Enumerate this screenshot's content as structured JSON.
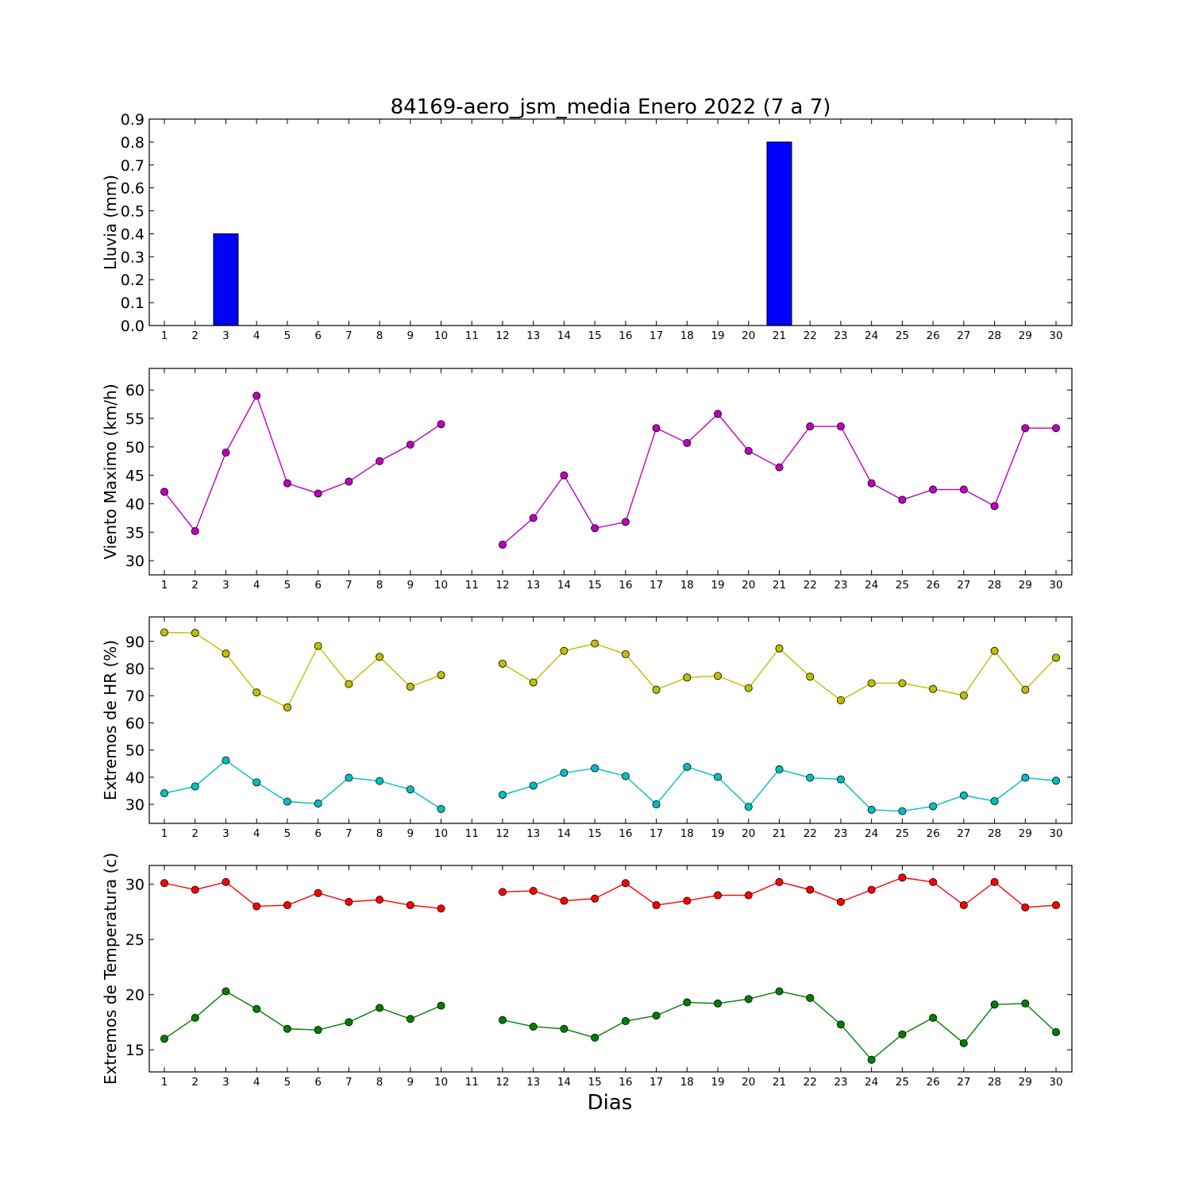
{
  "chart_data": [
    {
      "type": "bar",
      "title": "84169-aero_jsm_media Enero 2022  (7 a 7)",
      "ylabel": "Lluvia (mm)",
      "ylim": [
        0,
        0.9
      ],
      "yticks": [
        "0.0",
        "0.1",
        "0.2",
        "0.3",
        "0.4",
        "0.5",
        "0.6",
        "0.7",
        "0.8",
        "0.9"
      ],
      "xticks": [
        "1",
        "2",
        "3",
        "4",
        "5",
        "6",
        "7",
        "8",
        "9",
        "10",
        "11",
        "12",
        "13",
        "14",
        "15",
        "16",
        "17",
        "18",
        "19",
        "20",
        "21",
        "22",
        "23",
        "24",
        "25",
        "26",
        "27",
        "28",
        "29",
        "30"
      ],
      "series": [
        {
          "color": "#0000ff",
          "values": [
            0,
            0,
            0.4,
            0,
            0,
            0,
            0,
            0,
            0,
            0,
            0,
            0,
            0,
            0,
            0,
            0,
            0,
            0,
            0,
            0,
            0.8,
            0,
            0,
            0,
            0,
            0,
            0,
            0,
            0,
            0
          ]
        }
      ]
    },
    {
      "type": "line",
      "ylabel": "Viento Maximo (km/h)",
      "ylim": [
        27.5,
        63.8
      ],
      "yticks": [
        "30",
        "35",
        "40",
        "45",
        "50",
        "55",
        "60"
      ],
      "xticks": [
        "1",
        "2",
        "3",
        "4",
        "5",
        "6",
        "7",
        "8",
        "9",
        "10",
        "11",
        "12",
        "13",
        "14",
        "15",
        "16",
        "17",
        "18",
        "19",
        "20",
        "21",
        "22",
        "23",
        "24",
        "25",
        "26",
        "27",
        "28",
        "29",
        "30"
      ],
      "series": [
        {
          "color": "#bf00bf",
          "values": [
            42.1,
            35.2,
            49.0,
            59.0,
            43.6,
            41.8,
            43.9,
            47.5,
            50.4,
            54.0,
            null,
            32.8,
            37.5,
            45.0,
            35.7,
            36.8,
            53.3,
            50.7,
            55.8,
            49.3,
            46.4,
            53.6,
            53.6,
            43.6,
            40.7,
            42.5,
            42.5,
            39.6,
            53.3,
            53.3
          ]
        }
      ]
    },
    {
      "type": "line",
      "ylabel": "Extremos de HR (%)",
      "ylim": [
        23,
        99
      ],
      "yticks": [
        "30",
        "40",
        "50",
        "60",
        "70",
        "80",
        "90"
      ],
      "xticks": [
        "1",
        "2",
        "3",
        "4",
        "5",
        "6",
        "7",
        "8",
        "9",
        "10",
        "11",
        "12",
        "13",
        "14",
        "15",
        "16",
        "17",
        "18",
        "19",
        "20",
        "21",
        "22",
        "23",
        "24",
        "25",
        "26",
        "27",
        "28",
        "29",
        "30"
      ],
      "series": [
        {
          "color": "#bfbf00",
          "values": [
            93.3,
            93.1,
            85.5,
            71.2,
            65.7,
            88.3,
            74.3,
            84.3,
            73.3,
            77.6,
            null,
            81.8,
            74.9,
            86.5,
            89.2,
            85.3,
            72.2,
            76.7,
            77.3,
            72.8,
            87.4,
            77.0,
            68.3,
            74.6,
            74.6,
            72.5,
            70.1,
            86.5,
            72.2,
            84.0
          ]
        },
        {
          "color": "#00bfbf",
          "values": [
            34.1,
            36.6,
            46.2,
            38.1,
            31.0,
            30.3,
            39.8,
            38.6,
            35.5,
            28.3,
            null,
            33.5,
            36.9,
            41.6,
            43.3,
            40.4,
            30.0,
            43.8,
            40.1,
            29.1,
            42.9,
            39.8,
            39.2,
            28.0,
            27.5,
            29.3,
            33.3,
            31.2,
            39.8,
            38.7
          ]
        }
      ]
    },
    {
      "type": "line",
      "ylabel": "Extremos de Temperatura (c)",
      "ylim": [
        13.0,
        31.7
      ],
      "yticks": [
        "15",
        "20",
        "25",
        "30"
      ],
      "xticks": [
        "1",
        "2",
        "3",
        "4",
        "5",
        "6",
        "7",
        "8",
        "9",
        "10",
        "11",
        "12",
        "13",
        "14",
        "15",
        "16",
        "17",
        "18",
        "19",
        "20",
        "21",
        "22",
        "23",
        "24",
        "25",
        "26",
        "27",
        "28",
        "29",
        "30"
      ],
      "xlabel": "Dias",
      "series": [
        {
          "color": "#ff0000",
          "values": [
            30.1,
            29.5,
            30.2,
            28.0,
            28.1,
            29.2,
            28.4,
            28.6,
            28.1,
            27.8,
            null,
            29.3,
            29.4,
            28.5,
            28.7,
            30.1,
            28.1,
            28.5,
            29.0,
            29.0,
            30.2,
            29.5,
            28.4,
            29.5,
            30.6,
            30.2,
            28.1,
            30.2,
            27.9,
            28.1
          ]
        },
        {
          "color": "#007f00",
          "values": [
            16.0,
            17.9,
            20.3,
            18.7,
            16.9,
            16.8,
            17.5,
            18.8,
            17.8,
            19.0,
            null,
            17.7,
            17.1,
            16.9,
            16.1,
            17.6,
            18.1,
            19.3,
            19.2,
            19.6,
            20.3,
            19.7,
            17.3,
            14.1,
            16.4,
            17.9,
            15.6,
            19.1,
            19.2,
            16.6
          ]
        }
      ]
    }
  ]
}
